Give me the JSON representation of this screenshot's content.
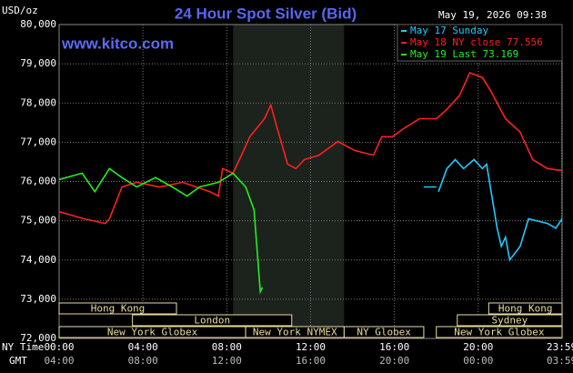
{
  "chart_data": {
    "type": "line",
    "title": "24 Hour Spot Silver (Bid)",
    "y_label": "USD/oz",
    "timestamp": "May 19, 2026 09:38",
    "watermark": "www.kitco.com",
    "xlim": [
      0,
      24
    ],
    "ylim": [
      72000,
      80000
    ],
    "grid": true,
    "legend": "top-right",
    "yticks": [
      {
        "value": 72000,
        "label": "72,000"
      },
      {
        "value": 73000,
        "label": "73,000"
      },
      {
        "value": 74000,
        "label": "74,000"
      },
      {
        "value": 75000,
        "label": "75,000"
      },
      {
        "value": 76000,
        "label": "76,000"
      },
      {
        "value": 77000,
        "label": "77,000"
      },
      {
        "value": 78000,
        "label": "78,000"
      },
      {
        "value": 79000,
        "label": "79,000"
      },
      {
        "value": 80000,
        "label": "80,000"
      }
    ],
    "xticks": [
      {
        "value": 0,
        "label": "00:00"
      },
      {
        "value": 4,
        "label": "04:00"
      },
      {
        "value": 8,
        "label": "08:00"
      },
      {
        "value": 12,
        "label": "12:00"
      },
      {
        "value": 16,
        "label": "16:00"
      },
      {
        "value": 20,
        "label": "20:00"
      },
      {
        "value": 23.98,
        "label": "23:59"
      }
    ],
    "x_row_label": "NY Time",
    "x2_row_label": "GMT",
    "x2_tick_labels": [
      "04:00",
      "08:00",
      "12:00",
      "16:00",
      "20:00",
      "00:00",
      "03:59"
    ],
    "shaded_range": [
      8.3,
      13.6
    ],
    "shaded_color": "#1c221c",
    "session_rows": [
      [
        {
          "name": "Hong Kong",
          "start": 0,
          "end": 5.6
        },
        {
          "name": "Hong Kong",
          "start": 20.5,
          "end": 24
        }
      ],
      [
        {
          "name": "London",
          "start": 3.5,
          "end": 11.1
        },
        {
          "name": "Sydney",
          "start": 19.0,
          "end": 24
        }
      ],
      [
        {
          "name": "New York Globex",
          "start": 0,
          "end": 8.9
        },
        {
          "name": "New York NYMEX",
          "start": 8.9,
          "end": 13.6
        },
        {
          "name": "NY Globex",
          "start": 13.6,
          "end": 17.4
        },
        {
          "name": "New York Globex",
          "start": 18.0,
          "end": 24
        }
      ]
    ],
    "series": [
      {
        "name": "May 17 Sunday",
        "color": "#22c8ff",
        "x": [
          17.4,
          18.0,
          null,
          18.1,
          18.5,
          18.9,
          19.3,
          19.8,
          20.2,
          20.4,
          20.9,
          21.1,
          21.3,
          21.5,
          22.0,
          22.4,
          23.3,
          23.7,
          24.0
        ],
        "values": [
          75860,
          75860,
          null,
          75740,
          76330,
          76560,
          76330,
          76560,
          76330,
          76440,
          74810,
          74350,
          74580,
          74000,
          74350,
          75050,
          74930,
          74810,
          75050
        ]
      },
      {
        "name": "May 18 NY close 77.556",
        "color": "#ff2020",
        "x": [
          0,
          1.2,
          2.2,
          2.4,
          3.0,
          3.7,
          4.8,
          5.9,
          7.2,
          7.6,
          7.8,
          8.3,
          8.7,
          9.1,
          9.8,
          10.1,
          10.4,
          10.9,
          11.3,
          11.7,
          12.4,
          13.3,
          14.1,
          15.0,
          15.4,
          15.9,
          16.5,
          17.2,
          18.0,
          18.5,
          19.1,
          19.6,
          20.2,
          20.6,
          21.3,
          22.0,
          22.6,
          23.3,
          24.0
        ],
        "values": [
          75230,
          75050,
          74930,
          75050,
          75860,
          75980,
          75860,
          75980,
          75740,
          75630,
          76330,
          76210,
          76670,
          77140,
          77600,
          77950,
          77370,
          76440,
          76330,
          76560,
          76670,
          77020,
          76790,
          76670,
          77140,
          77140,
          77370,
          77600,
          77600,
          77840,
          78190,
          78770,
          78650,
          78300,
          77600,
          77260,
          76560,
          76330,
          76280
        ]
      },
      {
        "name": "May 19 Last 73.169",
        "color": "#22ee22",
        "x": [
          0,
          1.1,
          1.7,
          2.4,
          3.0,
          3.7,
          4.6,
          5.4,
          6.1,
          6.7,
          7.6,
          8.3,
          8.9,
          9.3,
          9.6,
          9.7
        ],
        "values": [
          76050,
          76210,
          75740,
          76330,
          76100,
          75860,
          76100,
          75860,
          75630,
          75860,
          75980,
          76210,
          75860,
          75280,
          73190,
          73300
        ]
      }
    ]
  }
}
